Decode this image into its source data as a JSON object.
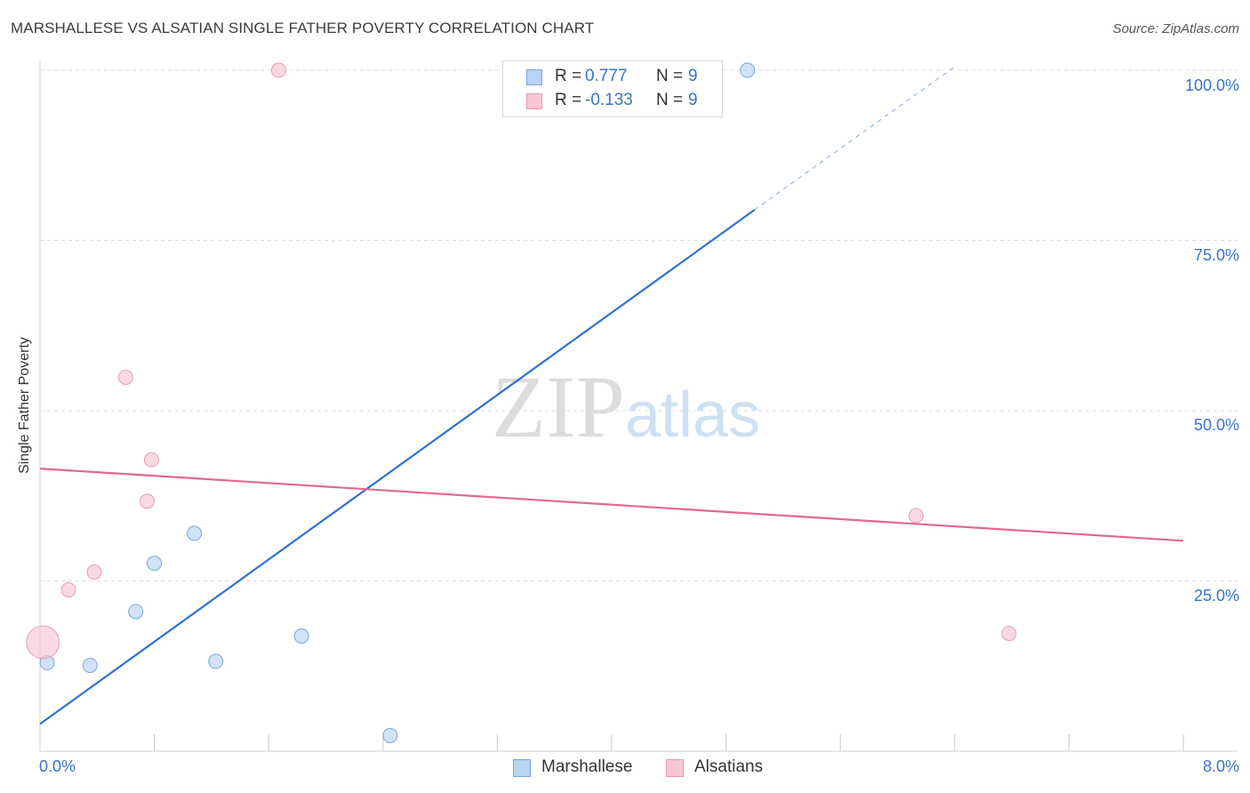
{
  "title": "MARSHALLESE VS ALSATIAN SINGLE FATHER POVERTY CORRELATION CHART",
  "source": "Source: ZipAtlas.com",
  "watermark": {
    "zip": "ZIP",
    "atlas": "atlas"
  },
  "colors": {
    "marshallese_fill": "#b9d3f3",
    "marshallese_stroke": "#7aa6dc",
    "marshallese_line": "#2f72d0",
    "alsatians_fill": "#f8c6d3",
    "alsatians_stroke": "#e99ab0",
    "alsatians_line": "#e2698f",
    "tick_label": "#3874c8"
  },
  "legend": {
    "rows": [
      {
        "series": "Marshallese",
        "r_label": "R =",
        "r_value": "0.777",
        "n_label": "N =",
        "n_value": "9"
      },
      {
        "series": "Alsatians",
        "r_label": "R =",
        "r_value": "-0.133",
        "n_label": "N =",
        "n_value": "9"
      }
    ],
    "bottom": [
      "Marshallese",
      "Alsatians"
    ]
  },
  "chart_data": {
    "type": "scatter",
    "title": "MARSHALLESE VS ALSATIAN SINGLE FATHER POVERTY CORRELATION CHART",
    "xlabel": "",
    "ylabel": "Single Father Poverty",
    "xlim": [
      0,
      8
    ],
    "ylim": [
      0,
      100
    ],
    "x_tick_labels": [
      "0.0%",
      "8.0%"
    ],
    "y_tick_values": [
      25,
      50,
      75,
      100
    ],
    "y_tick_labels": [
      "25.0%",
      "50.0%",
      "75.0%",
      "100.0%"
    ],
    "grid": "horizontal dashed",
    "series": [
      {
        "name": "Marshallese",
        "points": [
          {
            "x": 0.05,
            "y": 13.0,
            "size": 1
          },
          {
            "x": 0.35,
            "y": 12.6,
            "size": 1
          },
          {
            "x": 0.67,
            "y": 20.5,
            "size": 1
          },
          {
            "x": 0.8,
            "y": 27.6,
            "size": 1
          },
          {
            "x": 1.08,
            "y": 32.0,
            "size": 1
          },
          {
            "x": 1.23,
            "y": 13.2,
            "size": 1
          },
          {
            "x": 1.83,
            "y": 16.9,
            "size": 1
          },
          {
            "x": 2.45,
            "y": 2.3,
            "size": 1
          },
          {
            "x": 4.95,
            "y": 100.0,
            "size": 1
          }
        ],
        "trend": {
          "x0": 0,
          "y0": 4.0,
          "x1": 5.0,
          "y1": 79.5,
          "dash_to_x": 6.4,
          "dash_to_y": 100.5
        }
      },
      {
        "name": "Alsatians",
        "points": [
          {
            "x": 0.02,
            "y": 16.0,
            "size": 2.3
          },
          {
            "x": 0.2,
            "y": 23.7,
            "size": 1
          },
          {
            "x": 0.38,
            "y": 26.3,
            "size": 1
          },
          {
            "x": 0.6,
            "y": 54.9,
            "size": 1
          },
          {
            "x": 0.75,
            "y": 36.7,
            "size": 1
          },
          {
            "x": 0.78,
            "y": 42.8,
            "size": 1
          },
          {
            "x": 1.67,
            "y": 100.0,
            "size": 1
          },
          {
            "x": 6.13,
            "y": 34.6,
            "size": 1
          },
          {
            "x": 6.78,
            "y": 17.3,
            "size": 1
          }
        ],
        "trend": {
          "x0": 0,
          "y0": 41.5,
          "x1": 8.0,
          "y1": 30.9
        }
      }
    ]
  }
}
